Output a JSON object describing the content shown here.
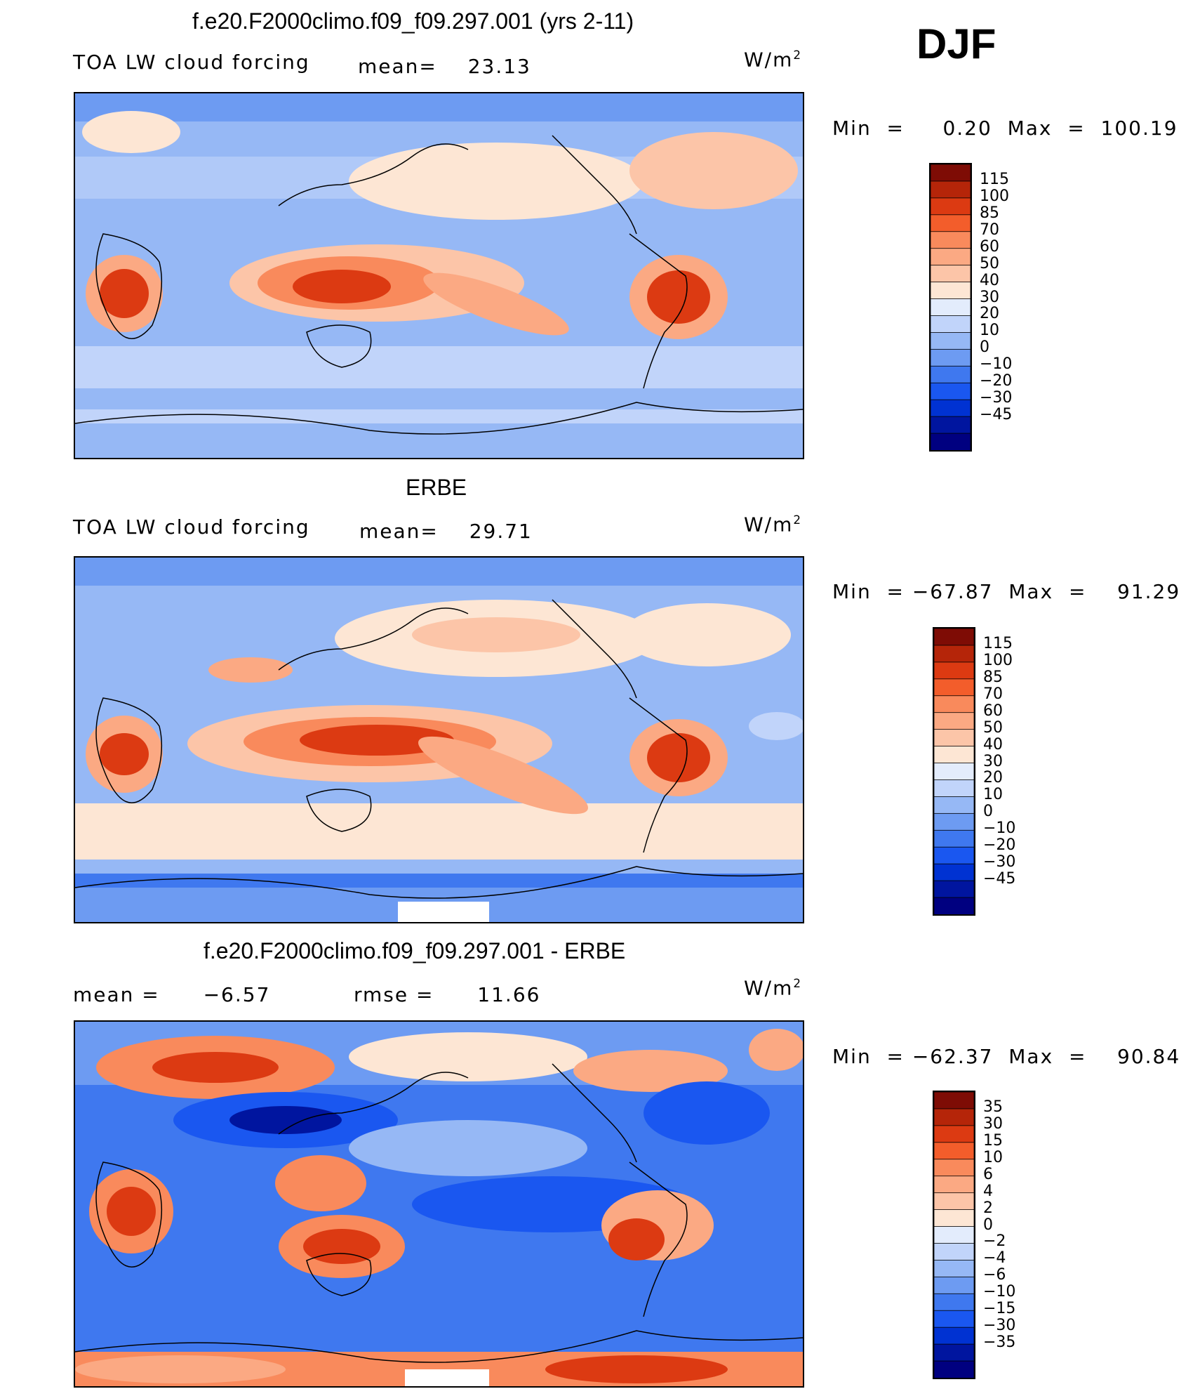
{
  "season": "DJF",
  "colors": {
    "land_outline": "#000000",
    "palette_main": [
      "#000080",
      "#00159f",
      "#0032d2",
      "#1a57f0",
      "#3f78ef",
      "#6d9bf2",
      "#96b8f5",
      "#c1d4fa",
      "#e3ecfc",
      "#fde6d4",
      "#fcc5a8",
      "#fba983",
      "#f98a5c",
      "#f35d2b",
      "#dc3a12",
      "#b52509",
      "#7e0c05"
    ],
    "palette_diff": [
      "#000080",
      "#00159f",
      "#0032d2",
      "#1a57f0",
      "#3f78ef",
      "#6d9bf2",
      "#96b8f5",
      "#c1d4fa",
      "#e3ecfc",
      "#fde6d4",
      "#fcc5a8",
      "#fba983",
      "#f98a5c",
      "#f35d2b",
      "#dc3a12",
      "#b52509",
      "#7e0c05"
    ]
  },
  "chart_data": [
    {
      "type": "heatmap",
      "title": "f.e20.F2000climo.f09_f09.297.001 (yrs 2-11)",
      "variable": "TOA LW cloud forcing",
      "mean_label": "mean=",
      "mean_value": "23.13",
      "units_base": "W/m",
      "units_exp": "2",
      "minmax_label": "Min  =     0.20  Max  =  100.19",
      "min": 0.2,
      "max": 100.19,
      "colorbar_levels": [
        "115",
        "100",
        "85",
        "70",
        "60",
        "50",
        "40",
        "30",
        "20",
        "10",
        "0",
        "−10",
        "−20",
        "−30",
        "−45"
      ]
    },
    {
      "type": "heatmap",
      "title": "ERBE",
      "variable": "TOA LW cloud forcing",
      "mean_label": "mean=",
      "mean_value": "29.71",
      "units_base": "W/m",
      "units_exp": "2",
      "minmax_label": "Min  = −67.87  Max  =    91.29",
      "min": -67.87,
      "max": 91.29,
      "colorbar_levels": [
        "115",
        "100",
        "85",
        "70",
        "60",
        "50",
        "40",
        "30",
        "20",
        "10",
        "0",
        "−10",
        "−20",
        "−30",
        "−45"
      ]
    },
    {
      "type": "heatmap",
      "title": "f.e20.F2000climo.f09_f09.297.001 - ERBE",
      "mean_label": "mean  =",
      "mean_value": "−6.57",
      "rmse_label": "rmse  =",
      "rmse_value": "11.66",
      "units_base": "W/m",
      "units_exp": "2",
      "minmax_label": "Min  = −62.37  Max  =    90.84",
      "min": -62.37,
      "max": 90.84,
      "colorbar_levels": [
        "35",
        "30",
        "15",
        "10",
        "6",
        "4",
        "2",
        "0",
        "−2",
        "−4",
        "−6",
        "−10",
        "−15",
        "−30",
        "−35"
      ]
    }
  ]
}
